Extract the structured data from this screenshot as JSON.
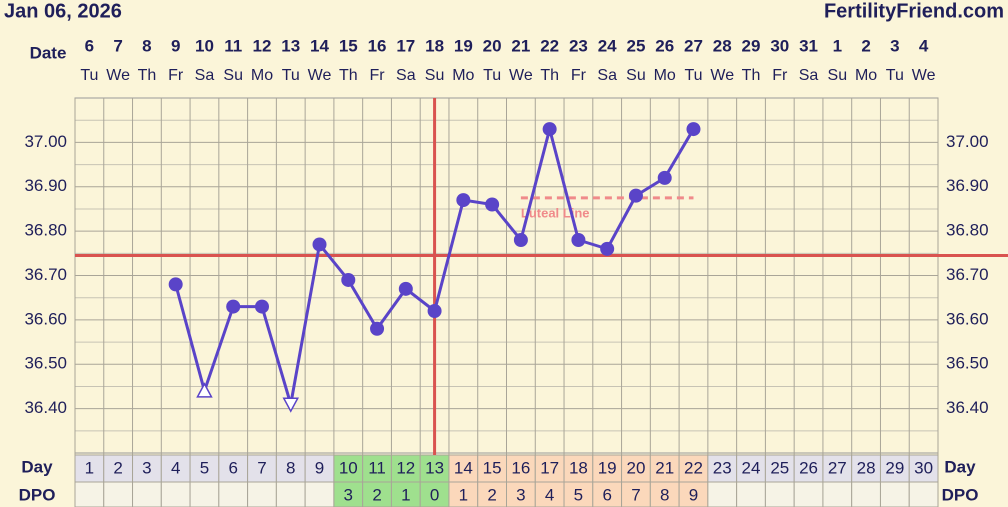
{
  "header": {
    "title": "Jan 06, 2026",
    "site": "FertilityFriend.com"
  },
  "chart_data": {
    "type": "line",
    "date_label": "Date",
    "day_label": "Day",
    "dpo_label": "DPO",
    "categories": [
      "6",
      "7",
      "8",
      "9",
      "10",
      "11",
      "12",
      "13",
      "14",
      "15",
      "16",
      "17",
      "18",
      "19",
      "20",
      "21",
      "22",
      "23",
      "24",
      "25",
      "26",
      "27",
      "28",
      "29",
      "30",
      "31",
      "1",
      "2",
      "3",
      "4"
    ],
    "weekdays": [
      "Tu",
      "We",
      "Th",
      "Fr",
      "Sa",
      "Su",
      "Mo",
      "Tu",
      "We",
      "Th",
      "Fr",
      "Sa",
      "Su",
      "Mo",
      "Tu",
      "We",
      "Th",
      "Fr",
      "Sa",
      "Su",
      "Mo",
      "Tu",
      "We",
      "Th",
      "Fr",
      "Sa",
      "Su",
      "Mo",
      "Tu",
      "We"
    ],
    "days": [
      1,
      2,
      3,
      4,
      5,
      6,
      7,
      8,
      9,
      10,
      11,
      12,
      13,
      14,
      15,
      16,
      17,
      18,
      19,
      20,
      21,
      22,
      23,
      24,
      25,
      26,
      27,
      28,
      29,
      30
    ],
    "dpo": [
      null,
      null,
      null,
      null,
      null,
      null,
      null,
      null,
      null,
      3,
      2,
      1,
      0,
      1,
      2,
      3,
      4,
      5,
      6,
      7,
      8,
      9,
      null,
      null,
      null,
      null,
      null,
      null,
      null,
      null
    ],
    "values": [
      null,
      null,
      null,
      36.68,
      36.44,
      36.63,
      36.63,
      36.41,
      36.77,
      36.69,
      36.58,
      36.67,
      36.62,
      36.87,
      36.86,
      36.78,
      37.03,
      36.78,
      36.76,
      36.88,
      36.92,
      37.03,
      null,
      null,
      null,
      null,
      null,
      null,
      null,
      null
    ],
    "markers": [
      null,
      null,
      null,
      "circle",
      "triangle-up",
      "circle",
      "circle",
      "triangle-down",
      "circle",
      "circle",
      "circle",
      "circle",
      "circle",
      "circle",
      "circle",
      "circle",
      "circle",
      "circle",
      "circle",
      "circle",
      "circle",
      "circle",
      null,
      null,
      null,
      null,
      null,
      null,
      null,
      null
    ],
    "color": "#5a44c8",
    "ylim": [
      36.3,
      37.1
    ],
    "yticks": [
      {
        "value": 36.4,
        "label": "36.40"
      },
      {
        "value": 36.5,
        "label": "36.50"
      },
      {
        "value": 36.6,
        "label": "36.60"
      },
      {
        "value": 36.7,
        "label": "36.70"
      },
      {
        "value": 36.8,
        "label": "36.80"
      },
      {
        "value": 36.9,
        "label": "36.90"
      },
      {
        "value": 37.0,
        "label": "37.00"
      }
    ],
    "grid": true,
    "coverline": {
      "value": 36.745,
      "color": "#d9534f"
    },
    "ovulation_day": 13,
    "luteal_line": {
      "label": "Luteal Line",
      "value": 36.875,
      "from_day": 16,
      "to_day": 22,
      "color": "#f08a8a"
    },
    "pre_ovulation_color": "#9fe08e",
    "post_ovulation_color": "#fbd8bb"
  }
}
